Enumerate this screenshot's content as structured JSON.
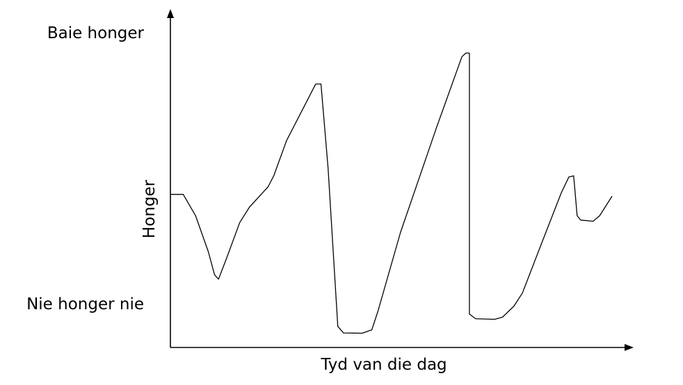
{
  "chart_data": {
    "type": "line",
    "title": "",
    "xlabel": "Tyd van die dag",
    "ylabel": "Honger",
    "y_tick_labels": {
      "top": "Baie honger",
      "bottom": "Nie honger nie"
    },
    "ylim": [
      0,
      100
    ],
    "xlim": [
      0,
      100
    ],
    "grid": false,
    "legend": "none",
    "line_color": "#000000",
    "series": [
      {
        "points": [
          [
            0,
            49.5
          ],
          [
            2.9,
            49.5
          ],
          [
            5.7,
            42.6
          ],
          [
            8.6,
            30.9
          ],
          [
            10.0,
            23.5
          ],
          [
            10.9,
            22.1
          ],
          [
            12.6,
            28.4
          ],
          [
            15.7,
            40.4
          ],
          [
            17.9,
            45.4
          ],
          [
            22.1,
            51.9
          ],
          [
            23.4,
            55.5
          ],
          [
            26.3,
            66.9
          ],
          [
            32.9,
            85.2
          ],
          [
            34.1,
            85.2
          ],
          [
            35.7,
            58.0
          ],
          [
            37.9,
            6.8
          ],
          [
            39.2,
            4.7
          ],
          [
            43.4,
            4.6
          ],
          [
            45.6,
            5.7
          ],
          [
            47.0,
            11.8
          ],
          [
            52.1,
            37.2
          ],
          [
            60.3,
            71.3
          ],
          [
            66.0,
            94.0
          ],
          [
            66.9,
            95.2
          ],
          [
            67.7,
            95.2
          ],
          [
            67.7,
            10.8
          ],
          [
            69.1,
            9.3
          ],
          [
            73.4,
            9.1
          ],
          [
            75.2,
            9.8
          ],
          [
            77.8,
            13.4
          ],
          [
            79.7,
            17.6
          ],
          [
            84.0,
            33.5
          ],
          [
            88.5,
            50.0
          ],
          [
            90.2,
            55.1
          ],
          [
            91.3,
            55.5
          ],
          [
            92.1,
            42.6
          ],
          [
            92.9,
            41.2
          ],
          [
            95.7,
            40.8
          ],
          [
            97.2,
            42.6
          ],
          [
            100,
            48.9
          ]
        ]
      }
    ]
  }
}
